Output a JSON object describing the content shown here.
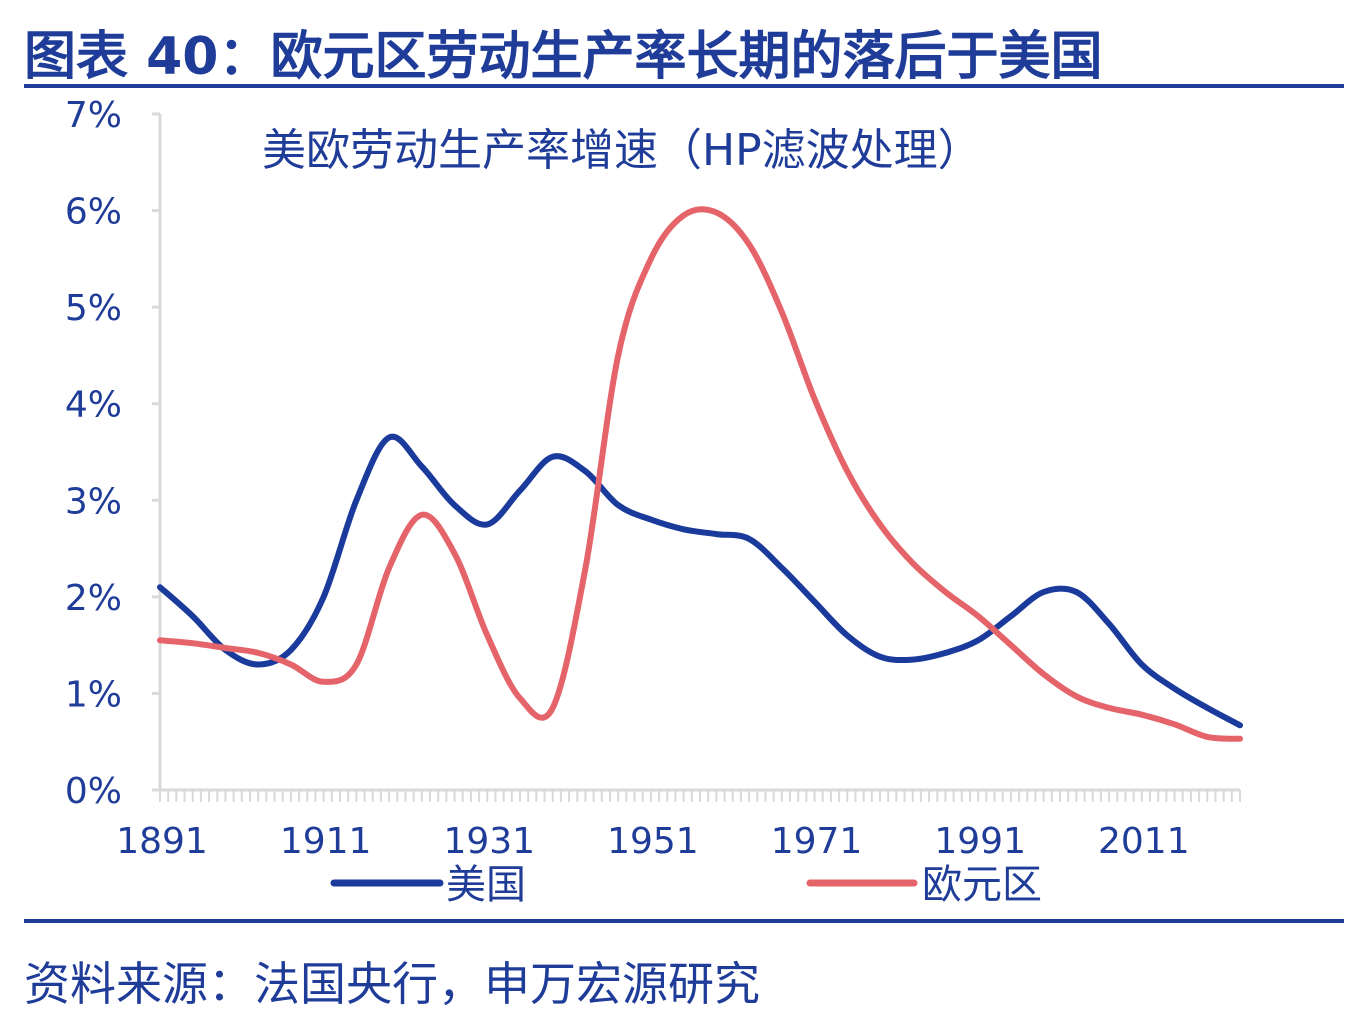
{
  "figure": {
    "title": "图表 40：欧元区劳动生产率长期的落后于美国",
    "source": "资料来源：法国央行，申万宏源研究"
  },
  "colors": {
    "text": "#1f3c99",
    "us_line": "#1a3a9c",
    "euro_line": "#e5646a",
    "axis": "#d9d9d9",
    "rule": "#1f3c99"
  },
  "chart_data": {
    "type": "line",
    "title": "美欧劳动生产率增速（HP滤波处理）",
    "xlabel": "",
    "ylabel": "",
    "xlim": [
      1891,
      2023
    ],
    "ylim": [
      0,
      7
    ],
    "y_ticks": [
      0,
      1,
      2,
      3,
      4,
      5,
      6,
      7
    ],
    "y_tick_labels": [
      "0%",
      "1%",
      "2%",
      "3%",
      "4%",
      "5%",
      "6%",
      "7%"
    ],
    "x_tick_labels": [
      "1891",
      "1911",
      "1931",
      "1951",
      "1971",
      "1991",
      "2011"
    ],
    "x_tick_values": [
      1891,
      1911,
      1931,
      1951,
      1971,
      1991,
      2011
    ],
    "legend_position": "bottom",
    "series": [
      {
        "name": "美国",
        "color": "#1a3a9c",
        "x": [
          1891,
          1895,
          1899,
          1903,
          1907,
          1911,
          1915,
          1919,
          1923,
          1927,
          1931,
          1935,
          1939,
          1943,
          1947,
          1951,
          1955,
          1959,
          1963,
          1967,
          1971,
          1975,
          1979,
          1983,
          1987,
          1991,
          1995,
          1999,
          2003,
          2007,
          2011,
          2015,
          2019,
          2023
        ],
        "values": [
          2.1,
          1.8,
          1.45,
          1.3,
          1.45,
          2.0,
          3.0,
          3.65,
          3.35,
          2.95,
          2.75,
          3.1,
          3.45,
          3.3,
          2.95,
          2.8,
          2.7,
          2.65,
          2.6,
          2.3,
          1.95,
          1.6,
          1.38,
          1.35,
          1.42,
          1.55,
          1.8,
          2.05,
          2.05,
          1.72,
          1.3,
          1.05,
          0.85,
          0.67
        ]
      },
      {
        "name": "欧元区",
        "color": "#e5646a",
        "x": [
          1891,
          1895,
          1899,
          1903,
          1907,
          1911,
          1915,
          1919,
          1923,
          1927,
          1931,
          1935,
          1939,
          1943,
          1947,
          1951,
          1955,
          1959,
          1963,
          1967,
          1971,
          1975,
          1979,
          1983,
          1987,
          1991,
          1995,
          1999,
          2003,
          2007,
          2011,
          2015,
          2019,
          2023
        ],
        "values": [
          1.55,
          1.52,
          1.47,
          1.42,
          1.3,
          1.12,
          1.3,
          2.3,
          2.85,
          2.45,
          1.6,
          0.95,
          0.85,
          2.3,
          4.5,
          5.5,
          5.95,
          5.98,
          5.65,
          4.95,
          4.05,
          3.3,
          2.75,
          2.35,
          2.05,
          1.8,
          1.5,
          1.2,
          0.97,
          0.85,
          0.78,
          0.68,
          0.55,
          0.53
        ]
      }
    ]
  }
}
